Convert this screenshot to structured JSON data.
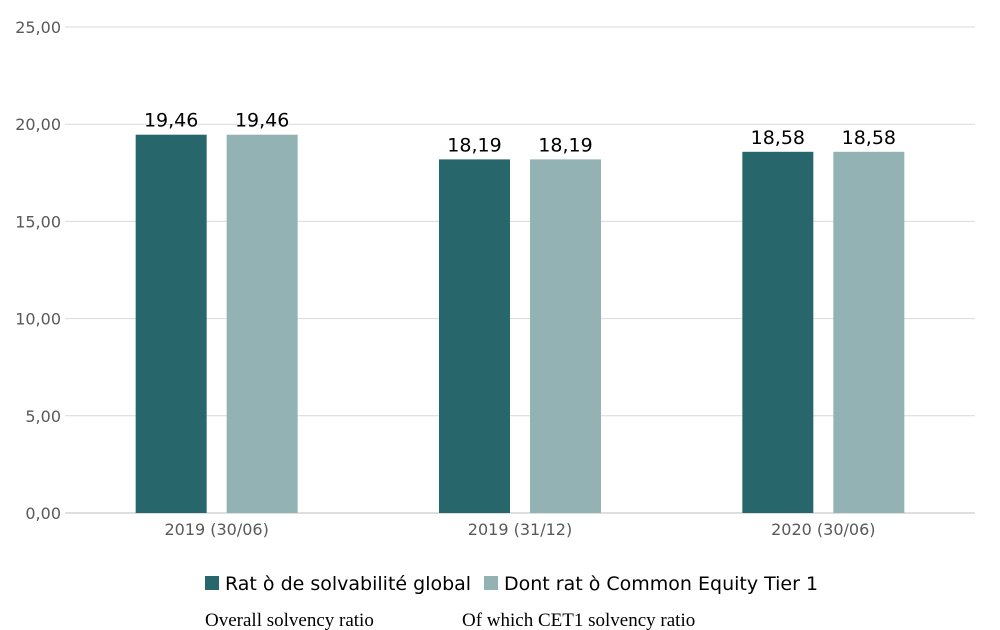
{
  "chart_data": {
    "type": "bar",
    "categories": [
      "2019 (30/06)",
      "2019 (31/12)",
      "2020 (30/06)"
    ],
    "series": [
      {
        "name": "Rat ὸ de solvabilité global",
        "color": "#27666b",
        "values": [
          19.46,
          18.19,
          18.58
        ],
        "labels": [
          "19,46",
          "18,19",
          "18,58"
        ]
      },
      {
        "name": "Dont rat ὸ Common Equity Tier 1",
        "color": "#92b2b4",
        "values": [
          19.46,
          18.19,
          18.58
        ],
        "labels": [
          "19,46",
          "18,19",
          "18,58"
        ]
      }
    ],
    "ylim": [
      0,
      25
    ],
    "yticks": [
      0,
      5,
      10,
      15,
      20,
      25
    ],
    "ytick_labels": [
      "0,00",
      "5,00",
      "10,00",
      "15,00",
      "20,00",
      "25,00"
    ],
    "grid": true,
    "legend_position": "bottom",
    "title": "",
    "xlabel": "",
    "ylabel": ""
  },
  "captions": {
    "series_1_english": "Overall solvency ratio",
    "series_2_english": "Of which CET1 solvency ratio"
  }
}
